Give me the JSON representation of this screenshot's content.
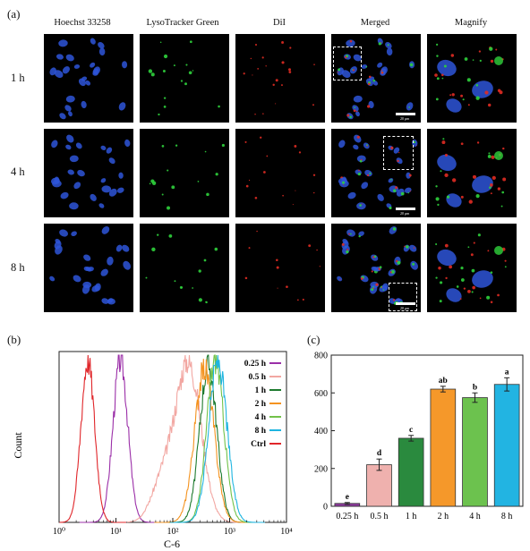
{
  "figure": {
    "panel_a_label": "(a)",
    "panel_b_label": "(b)",
    "panel_c_label": "(c)",
    "columns": [
      "Hoechst 33258",
      "LysoTracker Green",
      "DiI",
      "Merged",
      "Magnify"
    ],
    "rows": [
      "1 h",
      "4 h",
      "8 h"
    ],
    "scale_bar_text": "20 μm",
    "colors": {
      "nucleus": "#2e55d8",
      "lysotracker": "#2fd23c",
      "dil": "#e02b22",
      "background": "#000000"
    }
  },
  "chart_data": [
    {
      "type": "line",
      "subtype": "flow-cytometry-histogram",
      "xlabel": "C-6",
      "ylabel": "Count",
      "xscale": "log",
      "xlim": [
        1,
        10000
      ],
      "x_tick_labels": [
        "10⁰",
        "10¹",
        "10²",
        "10³",
        "10⁴"
      ],
      "legend_position": "top-right",
      "series": [
        {
          "name": "0.25 h",
          "color": "#9b2fa8",
          "peak_x": 12
        },
        {
          "name": "0.5 h",
          "color": "#f2a7a2",
          "peak_x": 190
        },
        {
          "name": "1 h",
          "color": "#1d7a2e",
          "peak_x": 420
        },
        {
          "name": "2 h",
          "color": "#f4931f",
          "peak_x": 360
        },
        {
          "name": "4 h",
          "color": "#72c24a",
          "peak_x": 560
        },
        {
          "name": "8 h",
          "color": "#1fb5e0",
          "peak_x": 620
        },
        {
          "name": "Ctrl",
          "color": "#e0262a",
          "peak_x": 3.2
        }
      ]
    },
    {
      "type": "bar",
      "categories": [
        "0.25 h",
        "0.5 h",
        "1 h",
        "2 h",
        "4 h",
        "8 h"
      ],
      "values": [
        15,
        220,
        360,
        620,
        575,
        645
      ],
      "errors": [
        5,
        30,
        15,
        15,
        25,
        35
      ],
      "significance": [
        "e",
        "d",
        "c",
        "ab",
        "b",
        "a"
      ],
      "colors": [
        "#8e3b9e",
        "#efb1ae",
        "#2a8a3e",
        "#f5982a",
        "#6cc24e",
        "#22b4e2"
      ],
      "ylim": [
        0,
        800
      ],
      "y_ticks": [
        0,
        200,
        400,
        600,
        800
      ],
      "xlabel": "",
      "ylabel": ""
    }
  ]
}
